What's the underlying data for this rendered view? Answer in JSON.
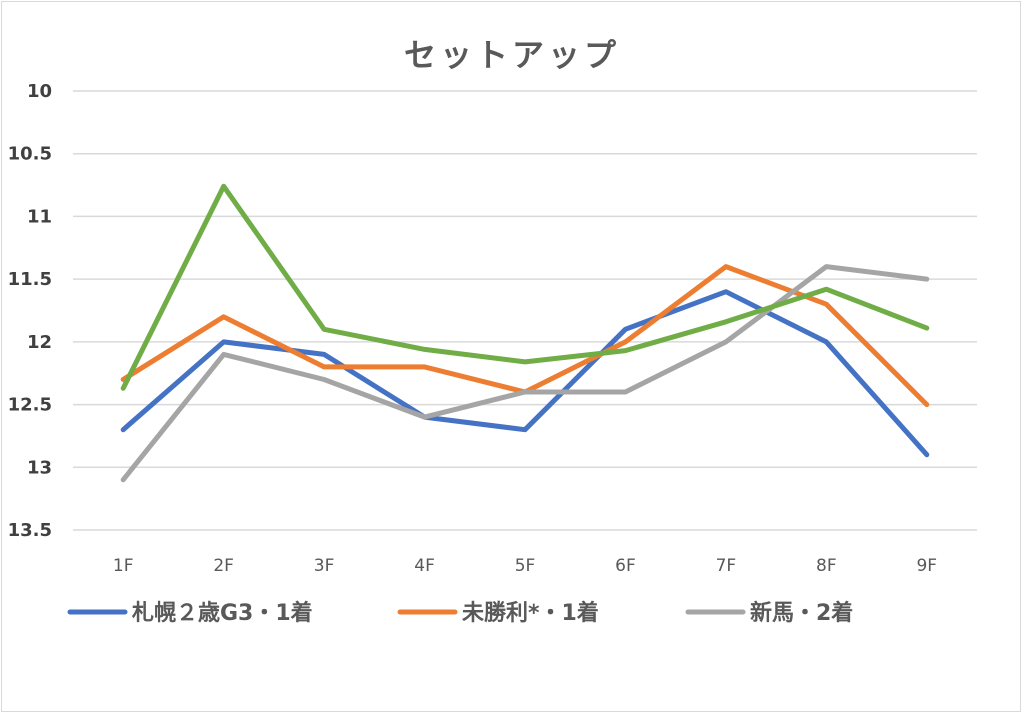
{
  "chart_data": {
    "type": "line",
    "title": "セットアップ",
    "xlabel": "",
    "ylabel": "",
    "categories": [
      "1F",
      "2F",
      "3F",
      "4F",
      "5F",
      "6F",
      "7F",
      "8F",
      "9F"
    ],
    "ylim": [
      10,
      13.5
    ],
    "y_inverted": true,
    "yticks": [
      "10",
      "10.5",
      "11",
      "11.5",
      "12",
      "12.5",
      "13",
      "13.5"
    ],
    "grid": true,
    "legend_position": "bottom",
    "series": [
      {
        "name": "札幌２歳G3・1着",
        "color": "#4472c4",
        "values": [
          12.7,
          12.0,
          12.1,
          12.6,
          12.7,
          11.9,
          11.6,
          12.0,
          12.9
        ]
      },
      {
        "name": "未勝利*・1着",
        "color": "#ed7d31",
        "values": [
          12.3,
          11.8,
          12.2,
          12.2,
          12.4,
          12.0,
          11.4,
          11.7,
          12.5
        ]
      },
      {
        "name": "新馬・2着",
        "color": "#a5a5a5",
        "values": [
          13.1,
          12.1,
          12.3,
          12.6,
          12.4,
          12.4,
          12.0,
          11.4,
          11.5
        ]
      },
      {
        "name": "",
        "color": "#70ad47",
        "values": [
          12.37,
          10.76,
          11.9,
          12.06,
          12.16,
          12.07,
          11.84,
          11.58,
          11.89
        ]
      }
    ]
  }
}
